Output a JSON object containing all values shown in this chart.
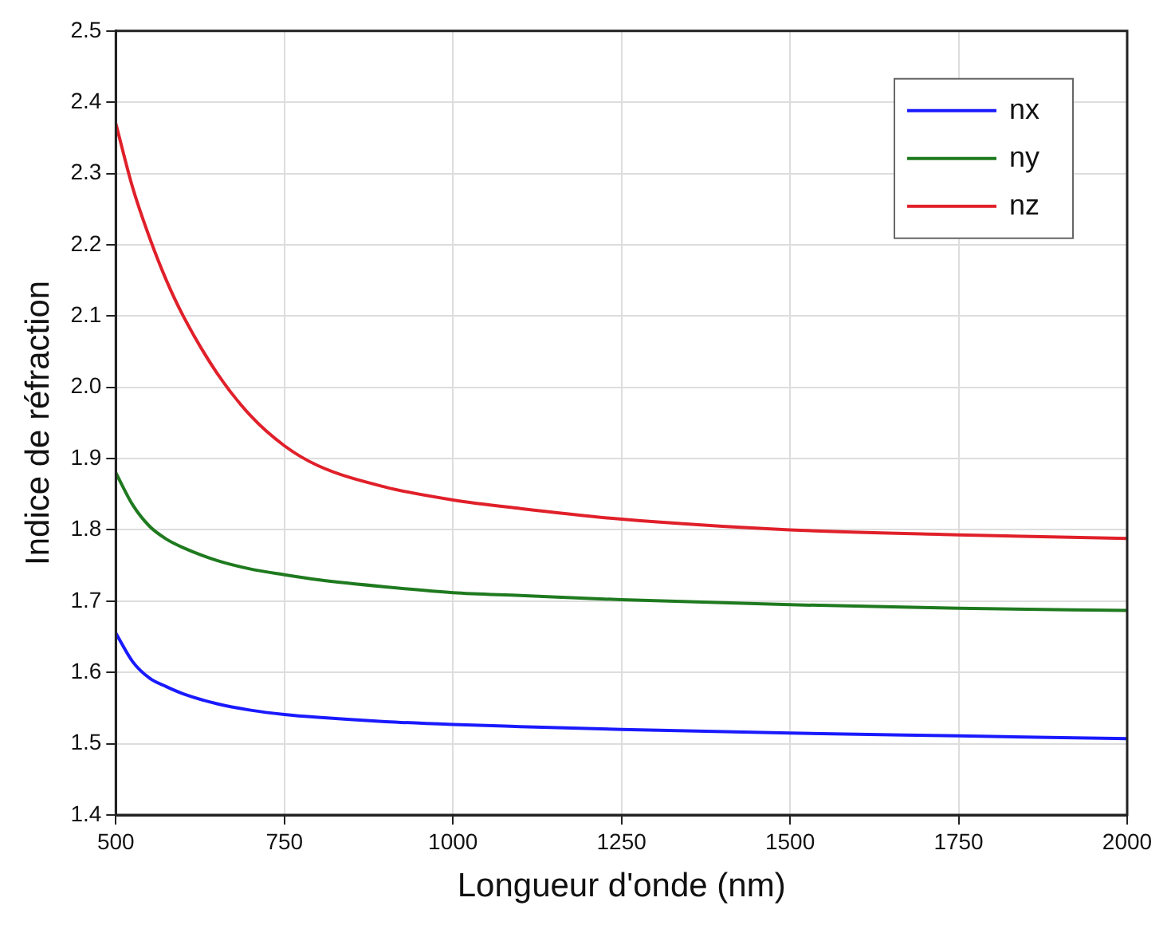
{
  "chart_data": {
    "type": "line",
    "xlabel": "Longueur d'onde (nm)",
    "ylabel": "Indice de réfraction",
    "x": [
      500,
      525,
      550,
      575,
      600,
      650,
      700,
      750,
      800,
      900,
      1000,
      1100,
      1250,
      1500,
      1750,
      2000
    ],
    "series": [
      {
        "name": "nx",
        "color": "#1a1aff",
        "values": [
          1.655,
          1.615,
          1.592,
          1.58,
          1.57,
          1.556,
          1.547,
          1.541,
          1.537,
          1.531,
          1.527,
          1.524,
          1.52,
          1.515,
          1.511,
          1.507
        ]
      },
      {
        "name": "ny",
        "color": "#1f7a1f",
        "values": [
          1.88,
          1.835,
          1.805,
          1.787,
          1.775,
          1.757,
          1.745,
          1.737,
          1.73,
          1.72,
          1.712,
          1.708,
          1.702,
          1.695,
          1.69,
          1.687
        ]
      },
      {
        "name": "nz",
        "color": "#e0202a",
        "values": [
          2.37,
          2.28,
          2.21,
          2.15,
          2.1,
          2.02,
          1.96,
          1.918,
          1.89,
          1.86,
          1.842,
          1.83,
          1.815,
          1.8,
          1.793,
          1.788
        ]
      }
    ],
    "xlim": [
      500,
      2000
    ],
    "xticks": [
      500,
      750,
      1000,
      1250,
      1500,
      1750,
      2000
    ],
    "ylim": [
      1.4,
      2.5
    ],
    "yticks": [
      1.4,
      1.5,
      1.6,
      1.7,
      1.8,
      1.9,
      {
        "value": 2,
        "label": "2.0"
      },
      2.1,
      2.2,
      2.3,
      2.4,
      2.5
    ],
    "grid": true,
    "legend": "top right",
    "marker": "none",
    "line_style": "solid"
  }
}
